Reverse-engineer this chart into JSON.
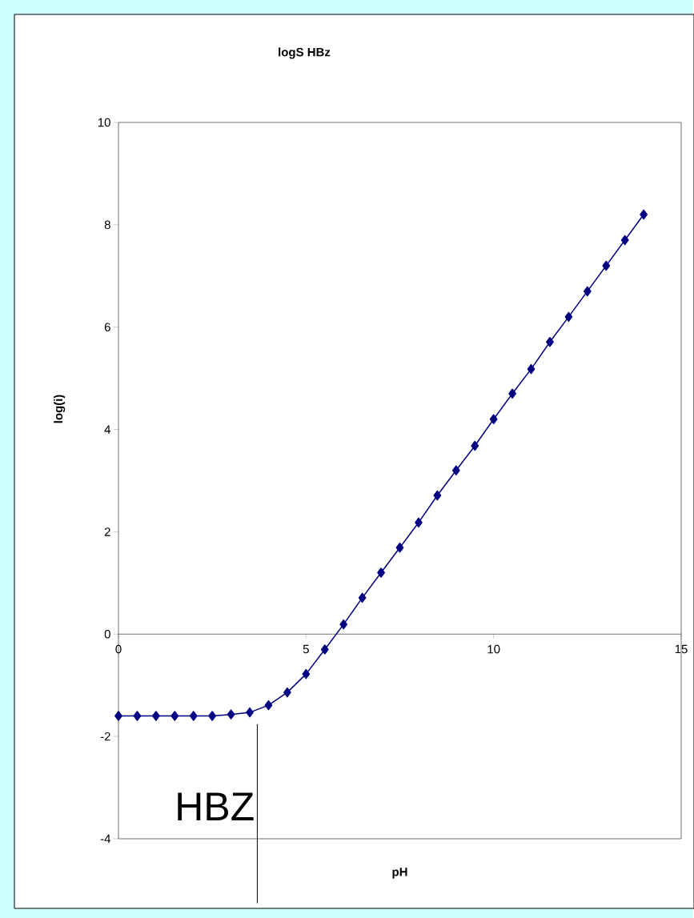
{
  "chart_data": {
    "type": "line",
    "title": "logS HBz",
    "xlabel": "pH",
    "ylabel": "log(i)",
    "x": [
      0,
      0.5,
      1,
      1.5,
      2,
      2.5,
      3,
      3.5,
      4,
      4.5,
      5,
      5.5,
      6,
      6.5,
      7,
      7.5,
      8,
      8.5,
      9,
      9.5,
      10,
      10.5,
      11,
      11.5,
      12,
      12.5,
      13,
      13.5,
      14
    ],
    "series": [
      {
        "color": "#000080",
        "values": [
          -1.6,
          -1.6,
          -1.6,
          -1.6,
          -1.6,
          -1.6,
          -1.57,
          -1.53,
          -1.39,
          -1.14,
          -0.78,
          -0.3,
          0.19,
          0.71,
          1.2,
          1.69,
          2.18,
          2.71,
          3.2,
          3.68,
          4.2,
          4.7,
          5.18,
          5.71,
          6.2,
          6.7,
          7.2,
          7.7,
          8.2
        ]
      }
    ],
    "marker": "diamond",
    "grid": false,
    "xlim": [
      0,
      15
    ],
    "ylim": [
      -4,
      10
    ],
    "xticks": [
      0,
      5,
      10,
      15
    ],
    "yticks": [
      -4,
      -2,
      0,
      2,
      4,
      6,
      8,
      10
    ],
    "ref_lines": [
      {
        "axis": "x",
        "value": 3.7,
        "label": "HBZ"
      }
    ]
  }
}
